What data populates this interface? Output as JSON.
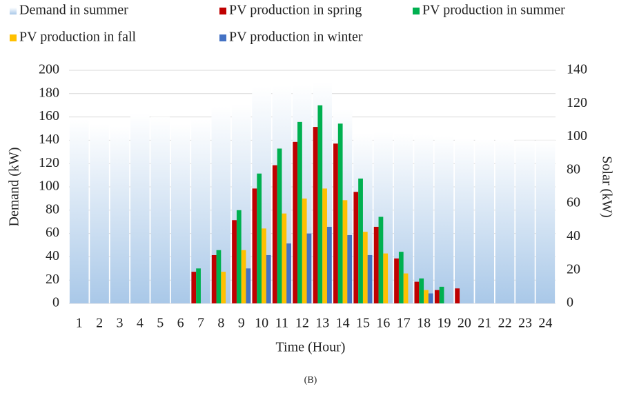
{
  "chart_data": {
    "type": "bar",
    "subtitle": "(B)",
    "x_label": "Time (Hour)",
    "y_label": "Demand (kW)",
    "y2_label": "Solar (kW)",
    "categories": [
      "1",
      "2",
      "3",
      "4",
      "5",
      "6",
      "7",
      "8",
      "9",
      "10",
      "11",
      "12",
      "13",
      "14",
      "15",
      "16",
      "17",
      "18",
      "19",
      "20",
      "21",
      "22",
      "23",
      "24"
    ],
    "ylim": [
      0,
      200
    ],
    "yticks": [
      0,
      20,
      40,
      60,
      80,
      100,
      120,
      140,
      160,
      180,
      200
    ],
    "y2lim": [
      0,
      140
    ],
    "y2ticks": [
      0,
      20,
      40,
      60,
      80,
      100,
      120,
      140
    ],
    "grid": true,
    "series": [
      {
        "name": "Demand in summer",
        "color": "#a9c8e8",
        "axis": "y",
        "values": [
          158,
          154,
          152,
          163,
          160,
          154,
          158,
          169,
          171,
          186,
          187,
          188,
          190,
          167,
          146,
          147,
          146,
          145,
          144,
          142,
          141,
          141,
          140,
          140
        ]
      },
      {
        "name": "PV production in spring",
        "color": "#c00000",
        "axis": "y2",
        "values": [
          null,
          null,
          null,
          null,
          null,
          null,
          19,
          29,
          50,
          69,
          83,
          97,
          106,
          96,
          67,
          46,
          27,
          13,
          8,
          9,
          null,
          null,
          null,
          null
        ]
      },
      {
        "name": "PV production in summer",
        "color": "#00b050",
        "axis": "y2",
        "values": [
          null,
          null,
          null,
          null,
          null,
          null,
          21,
          32,
          56,
          78,
          93,
          109,
          119,
          108,
          75,
          52,
          31,
          15,
          10,
          null,
          null,
          null,
          null,
          null
        ]
      },
      {
        "name": "PV production in fall",
        "color": "#ffc000",
        "axis": "y2",
        "values": [
          null,
          null,
          null,
          null,
          null,
          null,
          null,
          19,
          32,
          45,
          54,
          63,
          69,
          62,
          43,
          30,
          18,
          8,
          null,
          null,
          null,
          null,
          null,
          null
        ]
      },
      {
        "name": "PV production in winter",
        "color": "#4472c4",
        "axis": "y2",
        "values": [
          null,
          null,
          null,
          null,
          null,
          null,
          null,
          null,
          21,
          29,
          36,
          42,
          46,
          41,
          29,
          null,
          null,
          6,
          null,
          null,
          null,
          null,
          null,
          null
        ]
      }
    ]
  }
}
